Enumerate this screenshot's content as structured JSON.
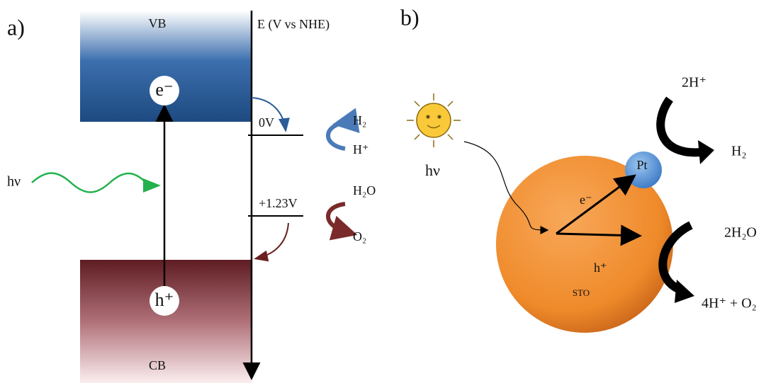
{
  "panel_a": {
    "label": "a)",
    "vb": "VB",
    "axis_label": "E (V vs NHE)",
    "electron": "e⁻",
    "level_h2": "0V",
    "h2": "H₂",
    "h_plus": "H⁺",
    "light": "hν",
    "level_o2": "+1.23V",
    "h2o": "H₂O",
    "o2": "O₂",
    "hole": "h⁺",
    "cb": "CB"
  },
  "panel_b": {
    "label": "b)",
    "reactant_h": "2H⁺",
    "product_h2": "H₂",
    "light": "hν",
    "cocatalyst": "Pt",
    "electron": "e⁻",
    "reactant_water": "2H₂O",
    "hole": "h⁺",
    "particle": "STO",
    "product_o2": "4H⁺ + O₂"
  }
}
